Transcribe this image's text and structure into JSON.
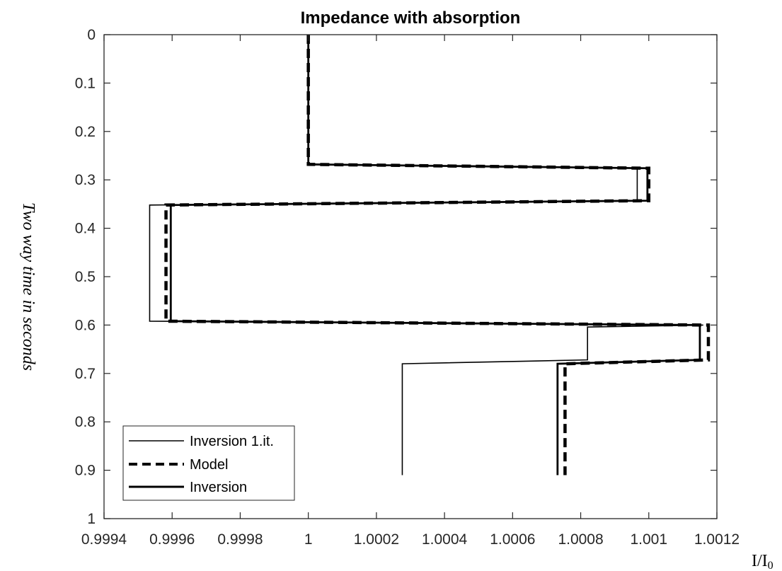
{
  "chart_data": {
    "type": "line",
    "title": "Impedance with absorption",
    "ylabel": "Two way time in seconds",
    "xlabel_main": "I/I",
    "xlabel_sub": "0",
    "xlim": [
      0.9994,
      1.0012
    ],
    "ylim": [
      0,
      1
    ],
    "y_reversed": true,
    "x_ticks": [
      "0.9994",
      "0.9996",
      "0.9998",
      "1",
      "1.0002",
      "1.0004",
      "1.0006",
      "1.0008",
      "1.001",
      "1.0012"
    ],
    "x_tick_values": [
      0.9994,
      0.9996,
      0.9998,
      1.0,
      1.0002,
      1.0004,
      1.0006,
      1.0008,
      1.001,
      1.0012
    ],
    "y_ticks": [
      "0",
      "0.1",
      "0.2",
      "0.3",
      "0.4",
      "0.5",
      "0.6",
      "0.7",
      "0.8",
      "0.9",
      "1"
    ],
    "y_tick_values": [
      0,
      0.1,
      0.2,
      0.3,
      0.4,
      0.5,
      0.6,
      0.7,
      0.8,
      0.9,
      1
    ],
    "legend_position": "bottom-left",
    "series": [
      {
        "name": "Inversion 1.it.",
        "style": "thin-solid",
        "x": [
          1.0,
          1.0,
          1.000966,
          1.000966,
          0.999534,
          0.999534,
          1.00116,
          1.00082,
          1.00082,
          1.000276,
          1.000276
        ],
        "y": [
          0.0,
          0.268,
          0.276,
          0.343,
          0.352,
          0.592,
          0.6,
          0.604,
          0.672,
          0.68,
          0.91
        ]
      },
      {
        "name": "Model",
        "style": "dashed",
        "x": [
          1.0,
          1.0,
          1.001,
          1.001,
          0.999582,
          0.999582,
          1.001175,
          1.001175,
          1.000754,
          1.000754
        ],
        "y": [
          0.0,
          0.268,
          0.276,
          0.343,
          0.352,
          0.592,
          0.6,
          0.672,
          0.68,
          0.91
        ]
      },
      {
        "name": "Inversion",
        "style": "thick-solid",
        "x": [
          1.0,
          1.0,
          1.000996,
          1.000996,
          0.999596,
          0.999596,
          1.00115,
          1.00115,
          1.000732,
          1.000732
        ],
        "y": [
          0.0,
          0.268,
          0.276,
          0.343,
          0.352,
          0.592,
          0.6,
          0.672,
          0.68,
          0.91
        ]
      }
    ]
  }
}
